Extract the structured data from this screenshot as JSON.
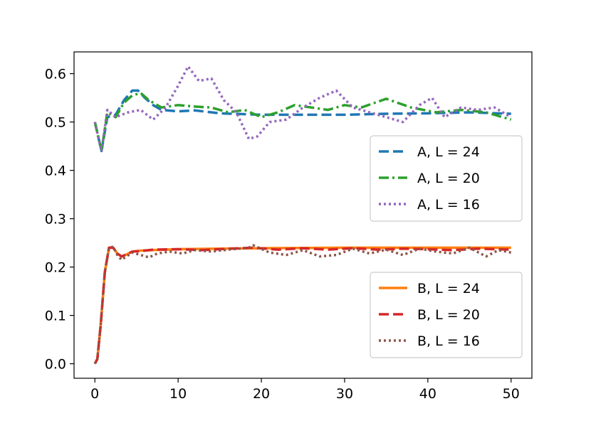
{
  "chart_data": {
    "type": "line",
    "title": "",
    "xlabel": "",
    "ylabel": "",
    "xlim": [
      -2.5,
      52.5
    ],
    "ylim": [
      -0.03,
      0.645
    ],
    "xticks": [
      "0",
      "10",
      "20",
      "30",
      "40",
      "50"
    ],
    "xtick_values": [
      0,
      10,
      20,
      30,
      40,
      50
    ],
    "yticks": [
      "0.0",
      "0.1",
      "0.2",
      "0.3",
      "0.4",
      "0.5",
      "0.6"
    ],
    "ytick_values": [
      0.0,
      0.1,
      0.2,
      0.3,
      0.4,
      0.5,
      0.6
    ],
    "grid": false,
    "legends": [
      {
        "placement": "center-right",
        "entries": [
          "A, L = 24",
          "A, L = 20",
          "A, L = 16"
        ]
      },
      {
        "placement": "lower-right",
        "entries": [
          "B, L = 24",
          "B, L = 20",
          "B, L = 16"
        ]
      }
    ],
    "series": [
      {
        "name": "A, L = 24",
        "color": "#1f77b4",
        "style": "dashed",
        "legend": 0,
        "x": [
          0,
          0.8,
          1.5,
          2.5,
          3.5,
          4.5,
          5.2,
          6,
          7,
          8,
          10,
          12,
          15,
          20,
          25,
          30,
          35,
          40,
          45,
          50
        ],
        "y": [
          0.5,
          0.44,
          0.51,
          0.515,
          0.545,
          0.565,
          0.565,
          0.55,
          0.535,
          0.525,
          0.522,
          0.524,
          0.518,
          0.515,
          0.515,
          0.515,
          0.517,
          0.518,
          0.52,
          0.517
        ]
      },
      {
        "name": "A, L = 20",
        "color": "#2ca02c",
        "style": "dashdot",
        "legend": 0,
        "x": [
          0,
          0.8,
          1.5,
          2.5,
          3.5,
          4.5,
          5.5,
          6.5,
          8,
          10,
          12,
          14,
          16,
          18,
          20,
          22,
          24,
          26,
          28,
          30,
          32,
          35,
          38,
          41,
          44,
          47,
          50
        ],
        "y": [
          0.5,
          0.44,
          0.52,
          0.51,
          0.54,
          0.555,
          0.56,
          0.545,
          0.53,
          0.535,
          0.532,
          0.53,
          0.52,
          0.525,
          0.51,
          0.52,
          0.535,
          0.53,
          0.525,
          0.535,
          0.53,
          0.548,
          0.53,
          0.52,
          0.525,
          0.52,
          0.505
        ]
      },
      {
        "name": "A, L = 16",
        "color": "#9467bd",
        "style": "dotted",
        "legend": 0,
        "x": [
          0,
          0.8,
          1.5,
          2.5,
          4,
          5.5,
          7,
          8.5,
          10,
          11.2,
          12.5,
          14,
          15.5,
          17,
          18.5,
          19.5,
          21,
          23,
          25,
          27,
          29,
          31,
          33,
          35,
          37,
          39,
          40.5,
          42,
          44,
          46,
          48,
          50
        ],
        "y": [
          0.5,
          0.44,
          0.525,
          0.51,
          0.52,
          0.525,
          0.505,
          0.53,
          0.575,
          0.615,
          0.585,
          0.59,
          0.545,
          0.52,
          0.465,
          0.47,
          0.5,
          0.505,
          0.53,
          0.55,
          0.565,
          0.53,
          0.52,
          0.51,
          0.5,
          0.535,
          0.55,
          0.51,
          0.53,
          0.525,
          0.53,
          0.51
        ]
      },
      {
        "name": "B, L = 24",
        "color": "#ff7f0e",
        "style": "solid",
        "legend": 1,
        "x": [
          0,
          0.3,
          0.7,
          1.2,
          1.7,
          2.2,
          2.7,
          3.2,
          3.8,
          4.5,
          5.5,
          7,
          10,
          15,
          20,
          30,
          40,
          50
        ],
        "y": [
          0,
          0.01,
          0.08,
          0.19,
          0.24,
          0.24,
          0.228,
          0.222,
          0.226,
          0.232,
          0.234,
          0.235,
          0.237,
          0.238,
          0.239,
          0.24,
          0.24,
          0.24
        ]
      },
      {
        "name": "B, L = 20",
        "color": "#d62728",
        "style": "dashed",
        "legend": 1,
        "x": [
          0,
          0.3,
          0.7,
          1.2,
          1.7,
          2.2,
          2.7,
          3.2,
          3.8,
          4.5,
          5.5,
          7,
          10,
          13,
          16,
          19,
          22,
          25,
          28,
          31,
          34,
          37,
          40,
          43,
          46,
          50
        ],
        "y": [
          0,
          0.01,
          0.08,
          0.19,
          0.24,
          0.24,
          0.228,
          0.222,
          0.226,
          0.232,
          0.233,
          0.236,
          0.237,
          0.235,
          0.238,
          0.24,
          0.236,
          0.239,
          0.236,
          0.239,
          0.236,
          0.238,
          0.237,
          0.235,
          0.238,
          0.236
        ]
      },
      {
        "name": "B, L = 16",
        "color": "#8c564b",
        "style": "dotted",
        "legend": 1,
        "x": [
          0,
          0.3,
          0.7,
          1.2,
          1.7,
          2.2,
          2.7,
          3.2,
          3.8,
          4.5,
          5.5,
          6.5,
          7.5,
          9,
          10.5,
          12,
          14,
          16,
          18.5,
          19,
          21,
          23,
          25,
          27,
          29,
          31,
          33,
          35,
          37,
          39,
          41,
          43,
          45,
          47,
          48.5,
          50
        ],
        "y": [
          0,
          0.01,
          0.08,
          0.19,
          0.24,
          0.242,
          0.225,
          0.215,
          0.222,
          0.23,
          0.225,
          0.22,
          0.228,
          0.232,
          0.228,
          0.235,
          0.232,
          0.236,
          0.24,
          0.245,
          0.23,
          0.225,
          0.235,
          0.222,
          0.225,
          0.238,
          0.228,
          0.236,
          0.225,
          0.238,
          0.232,
          0.228,
          0.24,
          0.222,
          0.235,
          0.23
        ]
      }
    ]
  }
}
